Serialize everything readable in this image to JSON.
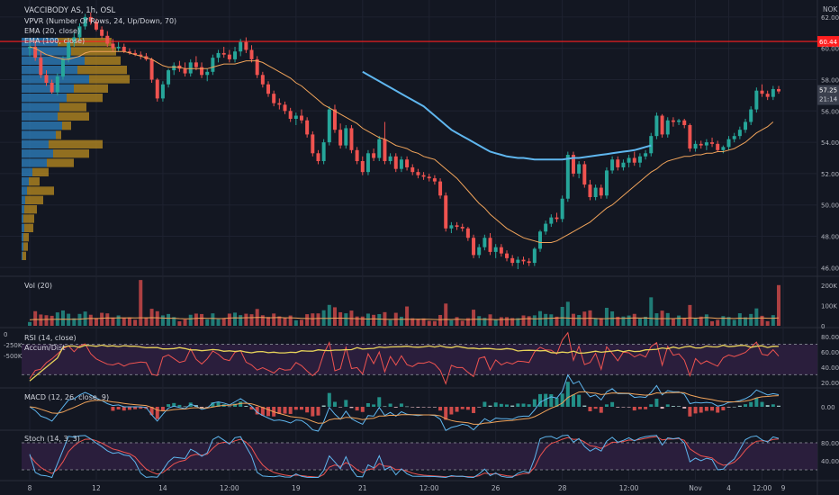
{
  "chart_data": {
    "type": "candlestick",
    "symbol_line": "VACCIBODY AS, 1h, OSL",
    "currency": "NOK",
    "overlays": [
      "VPVR (Number Of Rows, 24, Up/Down, 70)",
      "EMA (20, close)",
      "EMA (100, close)"
    ],
    "price_axis": {
      "range": [
        45.5,
        62.8
      ],
      "ticks": [
        "62.00",
        "60.00",
        "58.00",
        "56.00",
        "54.00",
        "52.00",
        "50.00",
        "48.00",
        "46.00"
      ]
    },
    "price_labels": {
      "level": "60.44",
      "last": "57.25",
      "countdown": "21:14"
    },
    "horizontal_line": 60.44,
    "x_axis_labels": [
      "8",
      "12",
      "14",
      "12:00",
      "19",
      "21",
      "12:00",
      "26",
      "28",
      "12:00",
      "Nov",
      "4",
      "12:00",
      "9"
    ],
    "candles": [
      [
        60,
        60.6,
        59.5,
        60.1
      ],
      [
        60.1,
        60.5,
        59.2,
        59.4
      ],
      [
        59.4,
        59.8,
        58.1,
        58.3
      ],
      [
        58.3,
        58.6,
        57.6,
        57.8
      ],
      [
        57.8,
        58,
        57.1,
        57.2
      ],
      [
        57.2,
        58.4,
        57,
        58.2
      ],
      [
        58.2,
        59.5,
        58,
        59.3
      ],
      [
        59.3,
        60.6,
        59.1,
        60.4
      ],
      [
        60.4,
        61,
        60.1,
        60.7
      ],
      [
        60.7,
        61.6,
        60.5,
        61.4
      ],
      [
        61.4,
        62.2,
        61.2,
        62
      ],
      [
        62,
        62.3,
        61.5,
        61.7
      ],
      [
        61.7,
        61.9,
        61.1,
        61.2
      ],
      [
        61.2,
        61.4,
        60.6,
        60.8
      ],
      [
        60.8,
        61.1,
        60.1,
        60.3
      ],
      [
        60.3,
        60.6,
        59.8,
        60
      ],
      [
        60,
        60.4,
        59.8,
        60.1
      ],
      [
        60.1,
        60.3,
        59.7,
        59.8
      ],
      [
        59.8,
        60,
        59.6,
        59.7
      ],
      [
        59.7,
        59.9,
        59.5,
        59.6
      ],
      [
        59.6,
        59.8,
        59.3,
        59.5
      ],
      [
        59.5,
        59.7,
        59.2,
        59.3
      ],
      [
        59.3,
        59.4,
        57.8,
        58
      ],
      [
        58,
        58.1,
        56.6,
        56.8
      ],
      [
        56.8,
        57.9,
        56.6,
        57.7
      ],
      [
        57.7,
        58.7,
        57.5,
        58.6
      ],
      [
        58.6,
        59.1,
        58.3,
        58.9
      ],
      [
        58.9,
        59.2,
        58.5,
        58.7
      ],
      [
        58.7,
        59.1,
        58.2,
        58.4
      ],
      [
        58.4,
        59.3,
        58.2,
        59.1
      ],
      [
        59.1,
        59.5,
        58.6,
        58.8
      ],
      [
        58.8,
        59.1,
        58.1,
        58.3
      ],
      [
        58.3,
        58.7,
        57.9,
        58.5
      ],
      [
        58.5,
        59.6,
        58.3,
        59.4
      ],
      [
        59.4,
        59.9,
        59.1,
        59.7
      ],
      [
        59.7,
        60.1,
        59.4,
        59.6
      ],
      [
        59.6,
        59.9,
        59.1,
        59.3
      ],
      [
        59.3,
        60.1,
        59.1,
        59.8
      ],
      [
        59.8,
        60.6,
        59.5,
        60.4
      ],
      [
        60.4,
        60.7,
        59.7,
        59.9
      ],
      [
        59.9,
        60.2,
        59.1,
        59.3
      ],
      [
        59.3,
        59.5,
        58.1,
        58.3
      ],
      [
        58.3,
        58.5,
        57.5,
        57.7
      ],
      [
        57.7,
        57.9,
        56.9,
        57.1
      ],
      [
        57.1,
        57.3,
        56.3,
        56.5
      ],
      [
        56.5,
        56.8,
        56.1,
        56.4
      ],
      [
        56.4,
        56.6,
        55.8,
        56
      ],
      [
        56,
        56.2,
        55.3,
        55.5
      ],
      [
        55.5,
        55.9,
        55.1,
        55.7
      ],
      [
        55.7,
        56.1,
        55.2,
        55.4
      ],
      [
        55.4,
        55.6,
        54.3,
        54.5
      ],
      [
        54.5,
        54.7,
        53.1,
        53.3
      ],
      [
        53.3,
        53.5,
        52.6,
        52.8
      ],
      [
        52.8,
        54.2,
        52.6,
        54
      ],
      [
        54,
        56.3,
        53.8,
        56.1
      ],
      [
        56.1,
        56.4,
        54.6,
        54.8
      ],
      [
        54.8,
        55.2,
        53.6,
        53.8
      ],
      [
        53.8,
        55.1,
        53.6,
        54.9
      ],
      [
        54.9,
        55.1,
        53.3,
        53.5
      ],
      [
        53.5,
        53.7,
        52.6,
        52.8
      ],
      [
        52.8,
        53.1,
        51.9,
        52.1
      ],
      [
        52.1,
        53.5,
        51.9,
        53.3
      ],
      [
        53.3,
        53.6,
        52.8,
        53
      ],
      [
        53,
        54.4,
        52.8,
        54.2
      ],
      [
        54.2,
        55.3,
        52.6,
        52.8
      ],
      [
        52.8,
        53.3,
        52.6,
        53.1
      ],
      [
        53.1,
        53.3,
        52.1,
        52.3
      ],
      [
        52.3,
        53.1,
        52.1,
        52.9
      ],
      [
        52.9,
        53.1,
        52.2,
        52.4
      ],
      [
        52.4,
        52.6,
        51.9,
        52.1
      ],
      [
        52.1,
        52.3,
        51.7,
        51.9
      ],
      [
        51.9,
        52.1,
        51.6,
        51.8
      ],
      [
        51.8,
        52,
        51.5,
        51.7
      ],
      [
        51.7,
        51.9,
        51.3,
        51.5
      ],
      [
        51.5,
        51.7,
        50.4,
        50.6
      ],
      [
        50.6,
        50.8,
        48.3,
        48.5
      ],
      [
        48.5,
        48.9,
        48.2,
        48.7
      ],
      [
        48.7,
        48.9,
        48.4,
        48.6
      ],
      [
        48.6,
        48.8,
        48.3,
        48.5
      ],
      [
        48.5,
        48.6,
        47.7,
        47.9
      ],
      [
        47.9,
        48.1,
        46.6,
        46.8
      ],
      [
        46.8,
        47.5,
        46.6,
        47.3
      ],
      [
        47.3,
        48.1,
        47.1,
        47.9
      ],
      [
        47.9,
        48.2,
        46.8,
        47
      ],
      [
        47,
        47.5,
        46.6,
        47.3
      ],
      [
        47.3,
        47.5,
        46.7,
        46.9
      ],
      [
        46.9,
        47.1,
        46.4,
        46.6
      ],
      [
        46.6,
        46.8,
        46.1,
        46.3
      ],
      [
        46.3,
        46.7,
        45.9,
        46.5
      ],
      [
        46.5,
        46.7,
        46.2,
        46.4
      ],
      [
        46.4,
        46.6,
        46.1,
        46.3
      ],
      [
        46.3,
        47.3,
        46.1,
        47.2
      ],
      [
        47.2,
        48.4,
        47,
        48.3
      ],
      [
        48.3,
        49,
        48.1,
        48.8
      ],
      [
        48.8,
        49.4,
        48.6,
        49.2
      ],
      [
        49.2,
        49.5,
        48.9,
        49.1
      ],
      [
        49.1,
        50.6,
        48.9,
        50.4
      ],
      [
        50.4,
        53.4,
        50.2,
        53.2
      ],
      [
        53.2,
        53.4,
        51.8,
        52
      ],
      [
        52,
        52.8,
        51.7,
        52.6
      ],
      [
        52.6,
        52.8,
        51.1,
        51.3
      ],
      [
        51.3,
        51.6,
        50.3,
        50.5
      ],
      [
        50.5,
        51.3,
        50.3,
        51.1
      ],
      [
        51.1,
        51.3,
        50.4,
        50.6
      ],
      [
        50.6,
        52.4,
        50.4,
        52.2
      ],
      [
        52.2,
        53.1,
        52,
        52.9
      ],
      [
        52.9,
        53.1,
        52.2,
        52.4
      ],
      [
        52.4,
        52.9,
        52.2,
        52.7
      ],
      [
        52.7,
        53.2,
        52.4,
        53
      ],
      [
        53,
        53.4,
        52.5,
        52.7
      ],
      [
        52.7,
        53.3,
        52.4,
        53.1
      ],
      [
        53.1,
        53.5,
        52.9,
        53.3
      ],
      [
        53.3,
        54.6,
        53.1,
        54.4
      ],
      [
        54.4,
        55.9,
        54.2,
        55.7
      ],
      [
        55.7,
        55.8,
        54.3,
        54.5
      ],
      [
        54.5,
        55.6,
        54.3,
        55.4
      ],
      [
        55.4,
        55.6,
        55,
        55.3
      ],
      [
        55.3,
        55.5,
        55.1,
        55.4
      ],
      [
        55.4,
        55.5,
        54.9,
        55.1
      ],
      [
        55.1,
        55.2,
        53.4,
        53.6
      ],
      [
        53.6,
        54.1,
        53.4,
        53.9
      ],
      [
        53.9,
        54.1,
        53.6,
        53.8
      ],
      [
        53.8,
        54.2,
        53.5,
        54
      ],
      [
        54,
        54.3,
        53.7,
        53.9
      ],
      [
        53.9,
        54.1,
        53.4,
        53.5
      ],
      [
        53.5,
        53.8,
        53.3,
        53.7
      ],
      [
        53.7,
        54.4,
        53.5,
        54.2
      ],
      [
        54.2,
        54.6,
        54,
        54.4
      ],
      [
        54.4,
        55,
        54.2,
        54.8
      ],
      [
        54.8,
        55.5,
        54.6,
        55.3
      ],
      [
        55.3,
        56.3,
        55.1,
        56.1
      ],
      [
        56.1,
        57.5,
        55.9,
        57.3
      ],
      [
        57.3,
        57.7,
        56.9,
        57.1
      ],
      [
        57.1,
        57.3,
        56.7,
        56.9
      ],
      [
        56.9,
        57.6,
        56.7,
        57.4
      ],
      [
        57.4,
        57.6,
        57.1,
        57.25
      ]
    ],
    "series": [
      {
        "name": "EMA (20, close)",
        "color": "#f0a35a",
        "from": 0,
        "values": [
          60.1,
          60,
          59.8,
          59.6,
          59.5,
          59.4,
          59.3,
          59.3,
          59.4,
          59.5,
          59.7,
          59.8,
          59.8,
          59.8,
          59.8,
          59.8,
          59.8,
          59.8,
          59.7,
          59.6,
          59.5,
          59.4,
          59.3,
          59.1,
          58.9,
          58.8,
          58.8,
          58.8,
          58.7,
          58.7,
          58.7,
          58.7,
          58.7,
          58.8,
          58.9,
          59,
          59,
          59,
          59.1,
          59.2,
          59.2,
          59.2,
          59.1,
          58.9,
          58.7,
          58.5,
          58.3,
          58.1,
          57.8,
          57.6,
          57.3,
          57,
          56.7,
          56.4,
          56.2,
          56,
          55.8,
          55.6,
          55.4,
          55.2,
          54.9,
          54.7,
          54.5,
          54.3,
          54.2,
          54,
          53.8,
          53.7,
          53.6,
          53.4,
          53.3,
          53.1,
          53,
          52.9,
          52.6,
          52.3,
          52,
          51.7,
          51.3,
          50.9,
          50.5,
          50.1,
          49.8,
          49.4,
          49.1,
          48.8,
          48.5,
          48.3,
          48.1,
          47.9,
          47.8,
          47.7,
          47.6,
          47.6,
          47.6,
          47.7,
          47.9,
          48.1,
          48.3,
          48.5,
          48.7,
          48.9,
          49.2,
          49.5,
          49.8,
          50,
          50.3,
          50.6,
          50.9,
          51.2,
          51.5,
          51.8,
          52.1,
          52.3,
          52.6,
          52.8,
          52.9,
          53,
          53.1,
          53.1,
          53.2,
          53.2,
          53.3,
          53.3,
          53.4,
          53.4,
          53.5,
          53.6,
          53.8,
          54,
          54.3,
          54.6,
          54.8,
          55,
          55.3
        ]
      },
      {
        "name": "EMA (100, close)",
        "color": "#5fb6ee",
        "from": 60,
        "values": [
          58.5,
          58.3,
          58.1,
          57.9,
          57.7,
          57.5,
          57.3,
          57.1,
          56.9,
          56.7,
          56.5,
          56.3,
          56,
          55.7,
          55.4,
          55.1,
          54.8,
          54.6,
          54.4,
          54.2,
          54,
          53.8,
          53.6,
          53.4,
          53.3,
          53.2,
          53.1,
          53.05,
          53,
          53,
          52.95,
          52.9,
          52.9,
          52.9,
          52.9,
          52.9,
          52.9,
          52.95,
          53,
          53,
          53.05,
          53.1,
          53.15,
          53.2,
          53.25,
          53.3,
          53.35,
          53.4,
          53.45,
          53.5,
          53.6,
          53.7,
          53.8
        ]
      }
    ],
    "volume": {
      "label": "Vol (20)",
      "ticks": [
        "200K",
        "100K",
        "0"
      ],
      "max": 230
    },
    "rsi": {
      "label": "RSI (14, close)",
      "ticks": [
        "80.00",
        "60.00",
        "40.00",
        "20.00"
      ],
      "range": [
        14,
        87
      ],
      "band": [
        30,
        70
      ]
    },
    "accum_dist": {
      "label": "Accum/Dist",
      "ticks": [
        "0",
        "-250K",
        "-500K"
      ]
    },
    "macd": {
      "label": "MACD (12, 26, close, 9)",
      "ticks": [
        "0.00"
      ]
    },
    "stoch": {
      "label": "Stoch (14, 3, 3)",
      "ticks": [
        "80.00",
        "40.00"
      ],
      "range": [
        0,
        100
      ],
      "band": [
        20,
        80
      ]
    }
  },
  "colors": {
    "up": "#26a69a",
    "down": "#ef5350",
    "bg": "#131722",
    "line": "#ff1f1f",
    "vpvr_up": "#2f84c4",
    "vpvr_down": "#c8951f",
    "rsi": "#e8d45a",
    "rsi_fill": "#2a1e3c",
    "accum": "#ef5350",
    "macd": "#5fb6ee",
    "signal": "#f0a35a",
    "stoch_k": "#5fb6ee",
    "stoch_d": "#ef5350"
  }
}
